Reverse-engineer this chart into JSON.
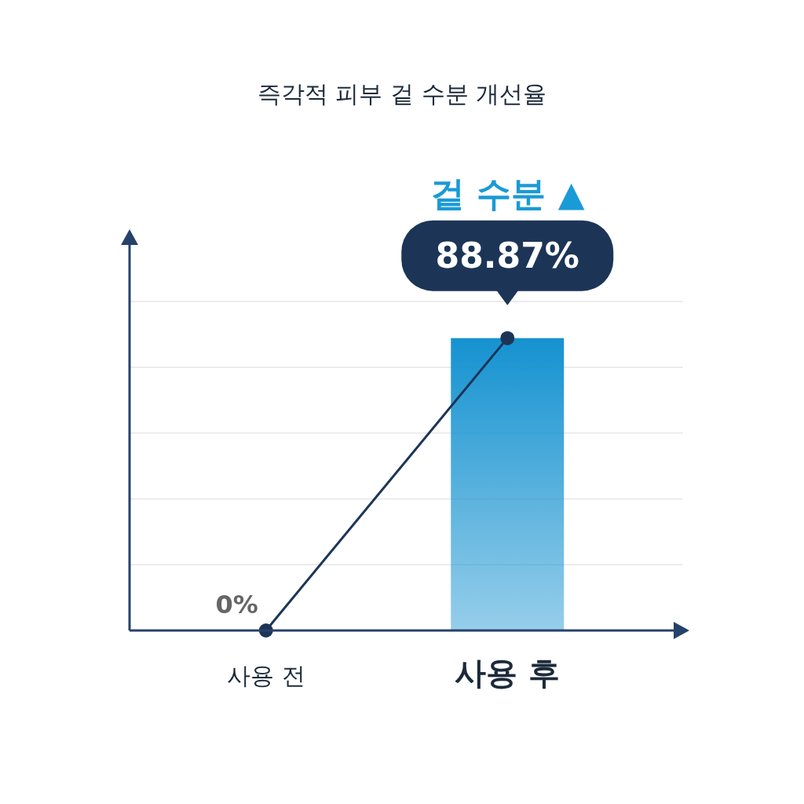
{
  "chart_data": {
    "type": "bar",
    "title": "즉각적 피부 겉 수분 개선율",
    "annotations": [
      "겉 수분 ▲"
    ],
    "categories": [
      "사용 전",
      "사용 후"
    ],
    "series": [
      {
        "color": "#1592d0",
        "values": [
          0,
          88.87
        ]
      },
      {
        "type": "line",
        "color": "#1c3557",
        "values": [
          0,
          88.87
        ],
        "value_labels": [
          "0%",
          "88.87%"
        ]
      }
    ],
    "ylim": [
      0,
      100
    ],
    "yticks": [
      {
        "value": 20,
        "label": null
      },
      {
        "value": 40,
        "label": null
      },
      {
        "value": 60,
        "label": null
      },
      {
        "value": 80,
        "label": null
      },
      {
        "value": 100,
        "label": null
      }
    ],
    "grid": "y",
    "tick_labels": "x",
    "marker": "circle"
  }
}
